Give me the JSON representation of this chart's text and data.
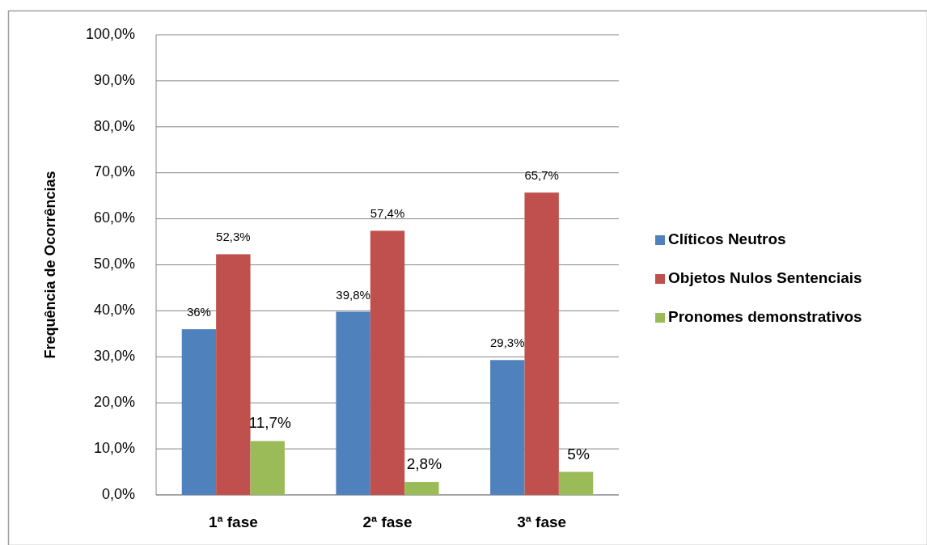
{
  "chart_data": {
    "type": "bar",
    "ylabel": "Frequência de Ocorrências",
    "categories": [
      "1ª fase",
      "2ª fase",
      "3ª fase"
    ],
    "series": [
      {
        "name": "Clíticos Neutros",
        "color": "#4f81bd",
        "values": [
          36,
          39.8,
          29.3
        ],
        "value_labels": [
          "36%",
          "39,8%",
          "29,3%"
        ]
      },
      {
        "name": "Objetos Nulos Sentenciais",
        "color": "#c0504d",
        "values": [
          52.3,
          57.4,
          65.7
        ],
        "value_labels": [
          "52,3%",
          "57,4%",
          "65,7%"
        ]
      },
      {
        "name": "Pronomes demonstrativos",
        "color": "#9bbb59",
        "values": [
          11.7,
          2.8,
          5
        ],
        "value_labels": [
          "11,7%",
          "2,8%",
          "5%"
        ]
      }
    ],
    "ylim": [
      0,
      100
    ],
    "yticks": [
      {
        "value": 0,
        "label": "0,0%"
      },
      {
        "value": 10,
        "label": "10,0%"
      },
      {
        "value": 20,
        "label": "20,0%"
      },
      {
        "value": 30,
        "label": "30,0%"
      },
      {
        "value": 40,
        "label": "40,0%"
      },
      {
        "value": 50,
        "label": "50,0%"
      },
      {
        "value": 60,
        "label": "60,0%"
      },
      {
        "value": 70,
        "label": "70,0%"
      },
      {
        "value": 80,
        "label": "80,0%"
      },
      {
        "value": 90,
        "label": "90,0%"
      },
      {
        "value": 100,
        "label": "100,0%"
      }
    ],
    "grid": "y",
    "legend": "right"
  }
}
